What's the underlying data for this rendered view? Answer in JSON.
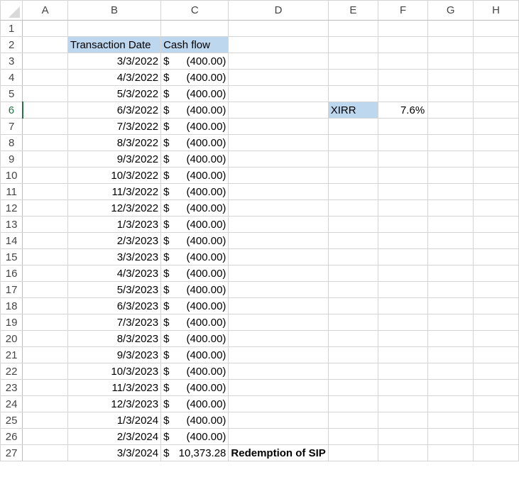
{
  "columns": [
    "A",
    "B",
    "C",
    "D",
    "E",
    "F",
    "G",
    "H"
  ],
  "active_row": 6,
  "highlight_color": "#bdd7ee",
  "header": {
    "date": "Transaction Date",
    "cash": "Cash flow"
  },
  "xirr": {
    "label": "XIRR",
    "value": "7.6%"
  },
  "note": "Redemption of SIP",
  "rows": [
    {
      "date": "3/3/2022",
      "sym": "$",
      "amt": "(400.00)"
    },
    {
      "date": "4/3/2022",
      "sym": "$",
      "amt": "(400.00)"
    },
    {
      "date": "5/3/2022",
      "sym": "$",
      "amt": "(400.00)"
    },
    {
      "date": "6/3/2022",
      "sym": "$",
      "amt": "(400.00)"
    },
    {
      "date": "7/3/2022",
      "sym": "$",
      "amt": "(400.00)"
    },
    {
      "date": "8/3/2022",
      "sym": "$",
      "amt": "(400.00)"
    },
    {
      "date": "9/3/2022",
      "sym": "$",
      "amt": "(400.00)"
    },
    {
      "date": "10/3/2022",
      "sym": "$",
      "amt": "(400.00)"
    },
    {
      "date": "11/3/2022",
      "sym": "$",
      "amt": "(400.00)"
    },
    {
      "date": "12/3/2022",
      "sym": "$",
      "amt": "(400.00)"
    },
    {
      "date": "1/3/2023",
      "sym": "$",
      "amt": "(400.00)"
    },
    {
      "date": "2/3/2023",
      "sym": "$",
      "amt": "(400.00)"
    },
    {
      "date": "3/3/2023",
      "sym": "$",
      "amt": "(400.00)"
    },
    {
      "date": "4/3/2023",
      "sym": "$",
      "amt": "(400.00)"
    },
    {
      "date": "5/3/2023",
      "sym": "$",
      "amt": "(400.00)"
    },
    {
      "date": "6/3/2023",
      "sym": "$",
      "amt": "(400.00)"
    },
    {
      "date": "7/3/2023",
      "sym": "$",
      "amt": "(400.00)"
    },
    {
      "date": "8/3/2023",
      "sym": "$",
      "amt": "(400.00)"
    },
    {
      "date": "9/3/2023",
      "sym": "$",
      "amt": "(400.00)"
    },
    {
      "date": "10/3/2023",
      "sym": "$",
      "amt": "(400.00)"
    },
    {
      "date": "11/3/2023",
      "sym": "$",
      "amt": "(400.00)"
    },
    {
      "date": "12/3/2023",
      "sym": "$",
      "amt": "(400.00)"
    },
    {
      "date": "1/3/2024",
      "sym": "$",
      "amt": "(400.00)"
    },
    {
      "date": "2/3/2024",
      "sym": "$",
      "amt": "(400.00)"
    },
    {
      "date": "3/3/2024",
      "sym": "$",
      "amt": "10,373.28"
    }
  ]
}
